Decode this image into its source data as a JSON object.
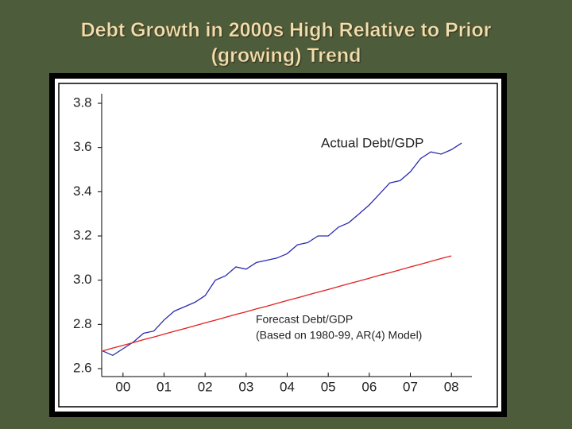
{
  "chart_data": {
    "type": "line",
    "title": "Debt Growth in 2000s High Relative to Prior (growing) Trend",
    "x": [
      2000,
      2000.25,
      2000.5,
      2000.75,
      2001,
      2001.25,
      2001.5,
      2001.75,
      2002,
      2002.25,
      2002.5,
      2002.75,
      2003,
      2003.25,
      2003.5,
      2003.75,
      2004,
      2004.25,
      2004.5,
      2004.75,
      2005,
      2005.25,
      2005.5,
      2005.75,
      2006,
      2006.25,
      2006.5,
      2006.75,
      2007,
      2007.25,
      2007.5,
      2007.75,
      2008,
      2008.25,
      2008.5,
      2008.75
    ],
    "series": [
      {
        "name": "Actual Debt/GDP",
        "color": "#2b2bb0",
        "values": [
          2.68,
          2.66,
          2.69,
          2.72,
          2.76,
          2.77,
          2.82,
          2.86,
          2.88,
          2.9,
          2.93,
          3.0,
          3.02,
          3.06,
          3.05,
          3.08,
          3.09,
          3.1,
          3.12,
          3.16,
          3.17,
          3.2,
          3.2,
          3.24,
          3.26,
          3.3,
          3.34,
          3.39,
          3.44,
          3.45,
          3.49,
          3.55,
          3.58,
          3.57,
          3.59,
          3.62
        ]
      },
      {
        "name": "Forecast Debt/GDP",
        "color": "#e02020",
        "values": [
          2.68,
          2.693,
          2.705,
          2.718,
          2.731,
          2.743,
          2.756,
          2.769,
          2.781,
          2.794,
          2.807,
          2.819,
          2.832,
          2.845,
          2.857,
          2.87,
          2.882,
          2.895,
          2.908,
          2.92,
          2.933,
          2.946,
          2.958,
          2.971,
          2.984,
          2.996,
          3.009,
          3.022,
          3.034,
          3.047,
          3.06,
          3.072,
          3.085,
          3.098,
          3.11,
          null
        ]
      }
    ],
    "annotations": [
      "(Based on 1980-99, AR(4) Model)"
    ],
    "xlim": [
      2000,
      2009
    ],
    "xticks": [
      {
        "value": 2000.5,
        "label": "00"
      },
      {
        "value": 2001.5,
        "label": "01"
      },
      {
        "value": 2002.5,
        "label": "02"
      },
      {
        "value": 2003.5,
        "label": "03"
      },
      {
        "value": 2004.5,
        "label": "04"
      },
      {
        "value": 2005.5,
        "label": "05"
      },
      {
        "value": 2006.5,
        "label": "06"
      },
      {
        "value": 2007.5,
        "label": "07"
      },
      {
        "value": 2008.5,
        "label": "08"
      }
    ],
    "ylim": [
      2.6,
      3.8
    ],
    "yticks": [
      2.6,
      2.8,
      {
        "value": 3,
        "label": "3.0"
      },
      3.2,
      3.4,
      3.6,
      3.8
    ],
    "grid": false
  }
}
